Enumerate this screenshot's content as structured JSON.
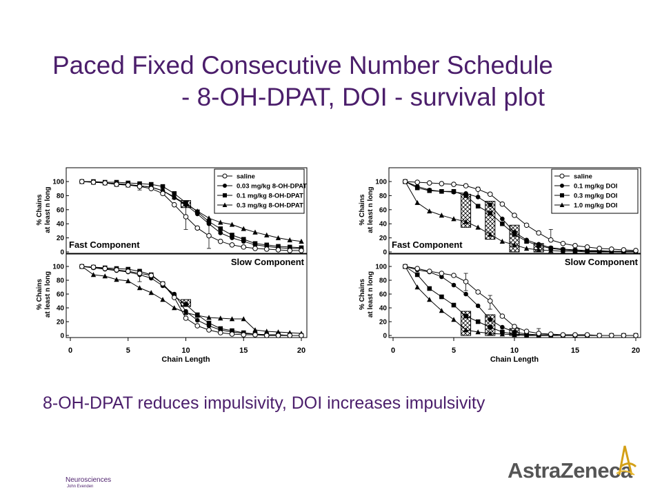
{
  "slide": {
    "title_line1": "Paced Fixed Consecutive Number Schedule",
    "title_line2": "- 8-OH-DPAT, DOI - survival plot",
    "subtitle": "8-OH-DPAT reduces impulsivity, DOI increases impulsivity",
    "footer_dept": "Neurosciences",
    "footer_author": "John Evenden",
    "logo_text": "AstraZeneca",
    "colors": {
      "title": "#4b1e6b",
      "logo_text": "#555555",
      "logo_mark": "#d4a017"
    }
  },
  "chart_data": [
    {
      "type": "line",
      "panel": "left-top",
      "annotation": "Fast Component",
      "ylabel": [
        "% Chains",
        "at least n long"
      ],
      "xlim": [
        0,
        20
      ],
      "ylim": [
        0,
        100
      ],
      "yticks": [
        0,
        20,
        40,
        60,
        80,
        100
      ],
      "legend_position": "top-right",
      "series": [
        {
          "name": "saline",
          "marker": "open-circle",
          "x": [
            1,
            2,
            3,
            4,
            5,
            6,
            7,
            8,
            9,
            10,
            11,
            12,
            13,
            14,
            15,
            16,
            17,
            18,
            19,
            20
          ],
          "y": [
            100,
            99,
            98,
            96,
            95,
            93,
            90,
            83,
            67,
            50,
            34,
            23,
            15,
            10,
            7,
            5,
            4,
            3,
            2,
            2
          ]
        },
        {
          "name": "0.03 mg/kg 8-OH-DPAT",
          "marker": "filled-circle",
          "x": [
            1,
            2,
            3,
            4,
            5,
            6,
            7,
            8,
            9,
            10,
            11,
            12,
            13,
            14,
            15,
            16,
            17,
            18,
            19,
            20
          ],
          "y": [
            100,
            99,
            98,
            97,
            96,
            94,
            92,
            87,
            77,
            67,
            54,
            40,
            27,
            20,
            15,
            10,
            8,
            6,
            5,
            5
          ]
        },
        {
          "name": "0.1 mg/kg 8-OH-DPAT",
          "marker": "filled-square",
          "x": [
            1,
            2,
            3,
            4,
            5,
            6,
            7,
            8,
            9,
            10,
            11,
            12,
            13,
            14,
            15,
            16,
            17,
            18,
            19,
            20
          ],
          "y": [
            100,
            100,
            99,
            99,
            98,
            97,
            96,
            93,
            83,
            70,
            57,
            43,
            33,
            24,
            18,
            12,
            10,
            8,
            7,
            6
          ]
        },
        {
          "name": "0.3 mg/kg 8-OH-DPAT",
          "marker": "filled-triangle",
          "x": [
            1,
            2,
            3,
            4,
            5,
            6,
            7,
            8,
            9,
            10,
            11,
            12,
            13,
            14,
            15,
            16,
            17,
            18,
            19,
            20
          ],
          "y": [
            100,
            99,
            98,
            96,
            95,
            94,
            92,
            87,
            78,
            68,
            58,
            48,
            42,
            39,
            33,
            28,
            24,
            20,
            17,
            15
          ]
        }
      ],
      "error_bars": [
        {
          "x": 10,
          "low": 32,
          "high": 68
        },
        {
          "x": 12,
          "low": 5,
          "high": 40
        },
        {
          "x": 6,
          "low": 88,
          "high": 98
        }
      ],
      "hatched_boxes": [
        {
          "x": 10,
          "low": 63,
          "high": 73
        }
      ]
    },
    {
      "type": "line",
      "panel": "left-bottom",
      "annotation": "Slow Component",
      "xlabel": "Chain Length",
      "ylabel": [
        "% Chains",
        "at least n long"
      ],
      "xlim": [
        0,
        20
      ],
      "ylim": [
        0,
        100
      ],
      "xticks": [
        0,
        5,
        10,
        15,
        20
      ],
      "yticks": [
        0,
        20,
        40,
        60,
        80,
        100
      ],
      "series": [
        {
          "name": "saline",
          "marker": "open-circle",
          "x": [
            1,
            2,
            3,
            4,
            5,
            6,
            7,
            8,
            9,
            10,
            11,
            12,
            13,
            14,
            15,
            16,
            17,
            18,
            19,
            20
          ],
          "y": [
            100,
            99,
            97,
            95,
            93,
            90,
            87,
            75,
            55,
            25,
            14,
            8,
            4,
            2,
            1,
            1,
            0,
            0,
            0,
            0
          ]
        },
        {
          "name": "0.03 mg/kg 8-OH-DPAT",
          "marker": "filled-circle",
          "x": [
            1,
            2,
            3,
            4,
            5,
            6,
            7,
            8,
            9,
            10,
            11,
            12,
            13,
            14,
            15,
            16,
            17,
            18,
            19,
            20
          ],
          "y": [
            100,
            98,
            96,
            94,
            92,
            88,
            83,
            72,
            60,
            35,
            22,
            14,
            8,
            5,
            3,
            2,
            1,
            1,
            0,
            0
          ]
        },
        {
          "name": "0.1 mg/kg 8-OH-DPAT",
          "marker": "filled-square",
          "x": [
            1,
            2,
            3,
            4,
            5,
            6,
            7,
            8,
            9,
            10,
            11,
            12,
            13,
            14,
            15,
            16,
            17,
            18,
            19,
            20
          ],
          "y": [
            100,
            99,
            98,
            97,
            96,
            93,
            88,
            75,
            57,
            45,
            30,
            18,
            10,
            7,
            4,
            2,
            1,
            1,
            0,
            0
          ]
        },
        {
          "name": "0.3 mg/kg 8-OH-DPAT",
          "marker": "filled-triangle",
          "x": [
            1,
            2,
            3,
            4,
            5,
            6,
            7,
            8,
            9,
            10,
            11,
            12,
            13,
            14,
            15,
            16,
            17,
            18,
            19,
            20
          ],
          "y": [
            100,
            88,
            86,
            81,
            79,
            69,
            62,
            52,
            40,
            33,
            29,
            26,
            25,
            24,
            24,
            8,
            6,
            5,
            4,
            3
          ]
        }
      ],
      "error_bars": [
        {
          "x": 6,
          "low": 78,
          "high": 96
        }
      ],
      "hatched_boxes": [
        {
          "x": 10,
          "low": 42,
          "high": 52
        }
      ]
    },
    {
      "type": "line",
      "panel": "right-top",
      "annotation": "Fast Component",
      "ylabel": [
        "% Chains",
        "at least n long"
      ],
      "xlim": [
        0,
        20
      ],
      "ylim": [
        0,
        100
      ],
      "yticks": [
        0,
        20,
        40,
        60,
        80,
        100
      ],
      "legend_position": "top-right",
      "series": [
        {
          "name": "saline",
          "marker": "open-circle",
          "x": [
            1,
            2,
            3,
            4,
            5,
            6,
            7,
            8,
            9,
            10,
            11,
            12,
            13,
            14,
            15,
            16,
            17,
            18,
            19,
            20
          ],
          "y": [
            100,
            99,
            98,
            97,
            96,
            94,
            89,
            82,
            68,
            52,
            38,
            27,
            17,
            12,
            9,
            7,
            5,
            4,
            3,
            2
          ]
        },
        {
          "name": "0.1 mg/kg DOI",
          "marker": "filled-circle",
          "x": [
            1,
            2,
            3,
            4,
            5,
            6,
            7,
            8,
            9,
            10,
            11,
            12,
            13,
            14,
            15,
            16,
            17,
            18,
            19,
            20
          ],
          "y": [
            100,
            93,
            88,
            86,
            85,
            83,
            78,
            67,
            47,
            28,
            17,
            11,
            6,
            4,
            3,
            2,
            2,
            1,
            1,
            1
          ]
        },
        {
          "name": "0.3 mg/kg DOI",
          "marker": "filled-square",
          "x": [
            1,
            2,
            3,
            4,
            5,
            6,
            7,
            8,
            9,
            10,
            11,
            12,
            13,
            14,
            15,
            16,
            17,
            18,
            19,
            20
          ],
          "y": [
            100,
            91,
            87,
            86,
            86,
            80,
            65,
            55,
            40,
            25,
            15,
            9,
            5,
            3,
            2,
            1,
            1,
            1,
            0,
            0
          ]
        },
        {
          "name": "1.0 mg/kg DOI",
          "marker": "filled-triangle",
          "x": [
            1,
            2,
            3,
            4,
            5,
            6,
            7,
            8,
            9,
            10,
            11,
            12,
            13,
            14,
            15,
            16,
            17,
            18,
            19,
            20
          ],
          "y": [
            100,
            70,
            58,
            52,
            47,
            43,
            35,
            25,
            15,
            10,
            5,
            3,
            2,
            1,
            1,
            0,
            0,
            0,
            0,
            0
          ]
        }
      ],
      "error_bars": [
        {
          "x": 7,
          "low": 78,
          "high": 92
        },
        {
          "x": 13,
          "low": 18,
          "high": 32
        }
      ],
      "hatched_boxes": [
        {
          "x": 6,
          "low": 35,
          "high": 82
        },
        {
          "x": 8,
          "low": 18,
          "high": 72
        },
        {
          "x": 10,
          "low": 0,
          "high": 38
        },
        {
          "x": 12,
          "low": 0,
          "high": 12
        }
      ]
    },
    {
      "type": "line",
      "panel": "right-bottom",
      "annotation": "Slow Component",
      "xlabel": "Chain Length",
      "ylabel": [
        "% Chains",
        "at least n long"
      ],
      "xlim": [
        0,
        20
      ],
      "ylim": [
        0,
        100
      ],
      "xticks": [
        0,
        5,
        10,
        15,
        20
      ],
      "yticks": [
        0,
        20,
        40,
        60,
        80,
        100
      ],
      "series": [
        {
          "name": "saline",
          "marker": "open-circle",
          "x": [
            1,
            2,
            3,
            4,
            5,
            6,
            7,
            8,
            9,
            10,
            11,
            12,
            13,
            14,
            15,
            16,
            17,
            18,
            19,
            20
          ],
          "y": [
            100,
            97,
            93,
            90,
            87,
            78,
            63,
            50,
            28,
            13,
            6,
            3,
            2,
            1,
            1,
            1,
            0,
            0,
            0,
            0
          ]
        },
        {
          "name": "0.1 mg/kg DOI",
          "marker": "filled-circle",
          "x": [
            1,
            2,
            3,
            4,
            5,
            6,
            7,
            8,
            9,
            10,
            11,
            12,
            13,
            14,
            15,
            16,
            17,
            18,
            19,
            20
          ],
          "y": [
            100,
            95,
            92,
            85,
            73,
            60,
            43,
            23,
            12,
            5,
            2,
            1,
            1,
            0,
            0,
            0,
            0,
            0,
            0,
            0
          ]
        },
        {
          "name": "0.3 mg/kg DOI",
          "marker": "filled-square",
          "x": [
            1,
            2,
            3,
            4,
            5,
            6,
            7,
            8,
            9,
            10,
            11,
            12,
            13,
            14,
            15,
            16,
            17,
            18,
            19,
            20
          ],
          "y": [
            100,
            88,
            68,
            56,
            44,
            28,
            20,
            12,
            5,
            2,
            1,
            0,
            0,
            0,
            0,
            0,
            0,
            0,
            0,
            0
          ]
        },
        {
          "name": "1.0 mg/kg DOI",
          "marker": "filled-triangle",
          "x": [
            1,
            2,
            3,
            4,
            5,
            6,
            7,
            8,
            9,
            10,
            11,
            12,
            13,
            14,
            15,
            16,
            17,
            18,
            19,
            20
          ],
          "y": [
            100,
            70,
            52,
            36,
            23,
            8,
            5,
            3,
            2,
            1,
            0,
            0,
            0,
            0,
            0,
            0,
            0,
            0,
            0,
            0
          ]
        }
      ],
      "error_bars": [
        {
          "x": 6,
          "low": 65,
          "high": 90
        },
        {
          "x": 8,
          "low": 38,
          "high": 58
        },
        {
          "x": 12,
          "low": 0,
          "high": 10
        }
      ],
      "hatched_boxes": [
        {
          "x": 6,
          "low": 0,
          "high": 35
        },
        {
          "x": 8,
          "low": 0,
          "high": 30
        },
        {
          "x": 10,
          "low": 0,
          "high": 10
        }
      ]
    }
  ]
}
